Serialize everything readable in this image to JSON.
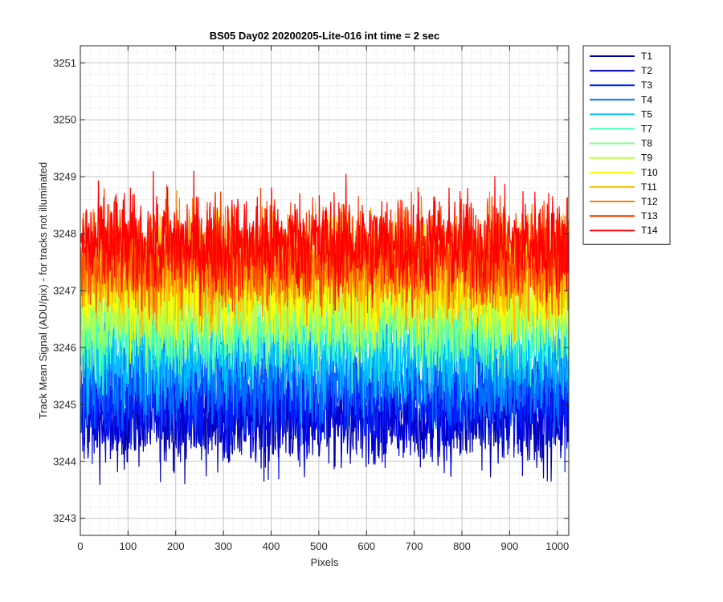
{
  "chart_data": {
    "type": "line",
    "title": "BS05 Day02 20200205-Lite-016 int time = 2 sec",
    "xlabel": "Pixels",
    "ylabel": "Track Mean Signal (ADU/pix) - for tracks not illuminated",
    "xlim": [
      0,
      1024
    ],
    "ylim": [
      3242.7,
      3251.3
    ],
    "x_ticks": [
      0,
      100,
      200,
      300,
      400,
      500,
      600,
      700,
      800,
      900,
      1000
    ],
    "y_ticks": [
      3243,
      3244,
      3245,
      3246,
      3247,
      3248,
      3249,
      3250,
      3251
    ],
    "grid": "major and minor",
    "legend_position": "outside-right",
    "n_points": 1024,
    "series": [
      {
        "name": "T1",
        "color": "#0000aa",
        "mean": 3244.8,
        "spread": 0.75
      },
      {
        "name": "T2",
        "color": "#0000dd",
        "mean": 3244.9,
        "spread": 0.75
      },
      {
        "name": "T3",
        "color": "#0022ff",
        "mean": 3245.2,
        "spread": 0.75
      },
      {
        "name": "T4",
        "color": "#0070ff",
        "mean": 3245.5,
        "spread": 0.75
      },
      {
        "name": "T5",
        "color": "#00c0ff",
        "mean": 3245.9,
        "spread": 0.75
      },
      {
        "name": "T7",
        "color": "#40ffc0",
        "mean": 3246.4,
        "spread": 0.75
      },
      {
        "name": "T8",
        "color": "#80ff80",
        "mean": 3246.6,
        "spread": 0.75
      },
      {
        "name": "T9",
        "color": "#c0ff40",
        "mean": 3246.8,
        "spread": 0.75
      },
      {
        "name": "T10",
        "color": "#ffff00",
        "mean": 3247.1,
        "spread": 0.75
      },
      {
        "name": "T11",
        "color": "#ffc000",
        "mean": 3247.3,
        "spread": 0.75
      },
      {
        "name": "T12",
        "color": "#ff8000",
        "mean": 3247.5,
        "spread": 0.75
      },
      {
        "name": "T13",
        "color": "#ff4000",
        "mean": 3247.7,
        "spread": 0.75
      },
      {
        "name": "T14",
        "color": "#ff0000",
        "mean": 3247.8,
        "spread": 0.75
      }
    ]
  }
}
